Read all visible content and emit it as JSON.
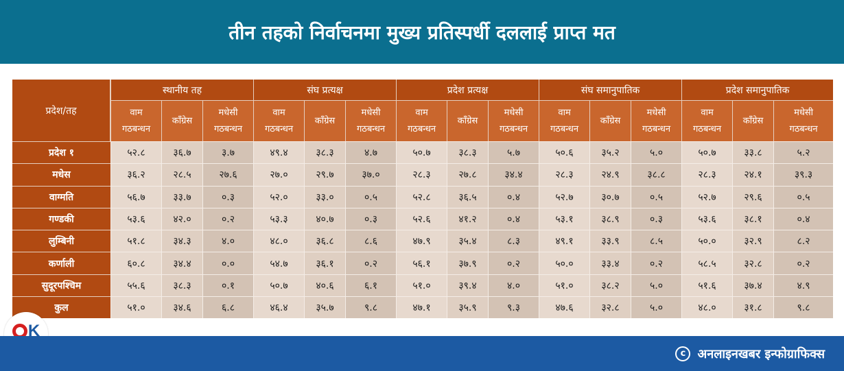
{
  "title": "तीन तहको निर्वाचनमा मुख्य प्रतिस्पर्धी दललाई प्राप्त मत",
  "table": {
    "corner_label": "प्रदेश/तह",
    "groups": [
      "स्थानीय तह",
      "संघ प्रत्यक्ष",
      "प्रदेश प्रत्यक्ष",
      "संघ समानुपातिक",
      "प्रदेश समानुपातिक"
    ],
    "sub_headers": {
      "vam_line1": "वाम",
      "vam_line2": "गठबन्धन",
      "congress": "काँग्रेस",
      "madhesi_line1": "मधेसी",
      "madhesi_line2": "गठबन्धन"
    },
    "rows": [
      {
        "label": "प्रदेश १",
        "values": [
          "५२.८",
          "३६.७",
          "३.७",
          "४९.४",
          "३८.३",
          "४.७",
          "५०.७",
          "३८.३",
          "५.७",
          "५०.६",
          "३५.२",
          "५.०",
          "५०.७",
          "३३.८",
          "५.२"
        ]
      },
      {
        "label": "मधेस",
        "values": [
          "३६.२",
          "२८.५",
          "२७.६",
          "२७.०",
          "२९.७",
          "३७.०",
          "२८.३",
          "२७.८",
          "३४.४",
          "२८.३",
          "२४.९",
          "३८.८",
          "२८.३",
          "२४.१",
          "३९.३"
        ]
      },
      {
        "label": "वाग्मति",
        "values": [
          "५६.७",
          "३३.७",
          "०.३",
          "५२.०",
          "३३.०",
          "०.५",
          "५२.८",
          "३६.५",
          "०.४",
          "५२.७",
          "३०.७",
          "०.५",
          "५२.७",
          "२९.६",
          "०.५"
        ]
      },
      {
        "label": "गण्डकी",
        "values": [
          "५३.६",
          "४२.०",
          "०.२",
          "५३.३",
          "४०.७",
          "०.३",
          "५२.६",
          "४१.२",
          "०.४",
          "५३.१",
          "३८.९",
          "०.३",
          "५३.६",
          "३८.१",
          "०.४"
        ]
      },
      {
        "label": "लुम्बिनी",
        "values": [
          "५१.८",
          "३४.३",
          "४.०",
          "४८.०",
          "३६.८",
          "८.६",
          "४७.९",
          "३५.४",
          "८.३",
          "४९.१",
          "३३.९",
          "८.५",
          "५०.०",
          "३२.९",
          "८.२"
        ]
      },
      {
        "label": "कर्णाली",
        "values": [
          "६०.८",
          "३४.४",
          "०.०",
          "५४.७",
          "३६.१",
          "०.२",
          "५६.१",
          "३७.९",
          "०.२",
          "५०.०",
          "३३.४",
          "०.२",
          "५८.५",
          "३२.८",
          "०.२"
        ]
      },
      {
        "label": "सुदूरपश्चिम",
        "values": [
          "५५.६",
          "३८.३",
          "०.१",
          "५०.७",
          "४०.६",
          "६.१",
          "५१.०",
          "३९.४",
          "४.०",
          "५१.०",
          "३८.२",
          "५.०",
          "५१.६",
          "३७.४",
          "४.९"
        ]
      },
      {
        "label": "कुल",
        "values": [
          "५१.०",
          "३४.६",
          "६.८",
          "४६.४",
          "३५.७",
          "९.८",
          "४७.१",
          "३५.९",
          "९.३",
          "४७.६",
          "३२.८",
          "५.०",
          "४८.०",
          "३१.८",
          "९.८"
        ]
      }
    ]
  },
  "footer": {
    "copyright_symbol": "c",
    "credit": "अनलाइनखबर इन्फोग्राफिक्स"
  },
  "logo": {
    "mark_letter": "K",
    "name": "onlinekhabar"
  },
  "colors": {
    "header_bg": "#0b6f8f",
    "footer_bg": "#1c5aa3",
    "table_header_dark": "#b14a12",
    "table_header_light": "#c9662d",
    "cell_bg": "#d9c9bc",
    "logo_red": "#d62020"
  }
}
